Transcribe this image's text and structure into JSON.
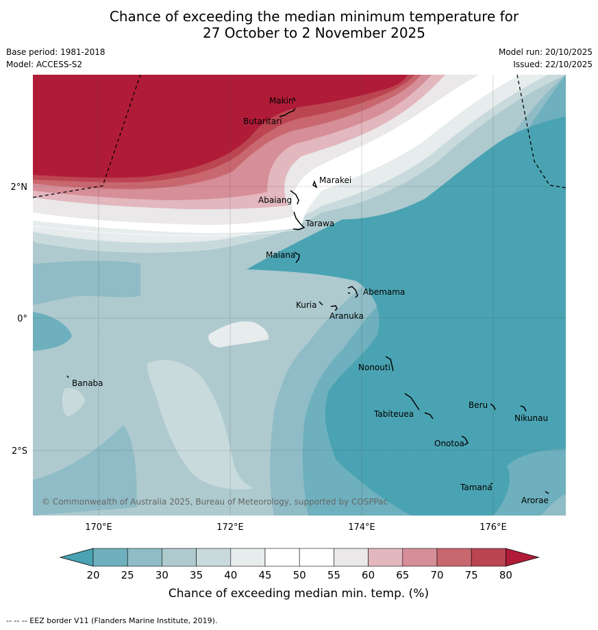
{
  "title": {
    "line1": "Chance of exceeding the median minimum temperature for",
    "line2": "27 October to 2 November 2025"
  },
  "meta": {
    "base_period": "Base period: 1981-2018",
    "model": "Model: ACCESS-S2",
    "model_run": "Model run: 20/10/2025",
    "issued": "Issued: 22/10/2025"
  },
  "map": {
    "lon_labels": [
      "170°E",
      "172°E",
      "174°E",
      "176°E"
    ],
    "lat_labels": [
      "2°N",
      "0°",
      "2°S"
    ],
    "places": [
      "Makin",
      "Butaritari",
      "Marakei",
      "Abaiang",
      "Tarawa",
      "Maiana",
      "Abemama",
      "Kuria",
      "Aranuka",
      "Banaba",
      "Nonouti",
      "Tabiteuea",
      "Beru",
      "Nikunau",
      "Onotoa",
      "Tamana",
      "Arorae"
    ],
    "copyright": "© Commonwealth of Australia 2025, Bureau of Meteorology, supported by COSPPac"
  },
  "legend": {
    "title": "Chance of exceeding median min. temp. (%)",
    "ticks": [
      "20",
      "25",
      "30",
      "35",
      "40",
      "45",
      "50",
      "55",
      "60",
      "65",
      "70",
      "75",
      "80"
    ],
    "colors": [
      "#4aa3b2",
      "#6eb0bd",
      "#8fbcc6",
      "#aecacf",
      "#c9dadd",
      "#e7eced",
      "#ffffff",
      "#ffffff",
      "#ebe8e9",
      "#e2b7bd",
      "#d68e98",
      "#c9676f",
      "#bc4552",
      "#b01c38"
    ]
  },
  "footer": "--  --  -- EEZ border V11 (Flanders Marine Institute, 2019)."
}
